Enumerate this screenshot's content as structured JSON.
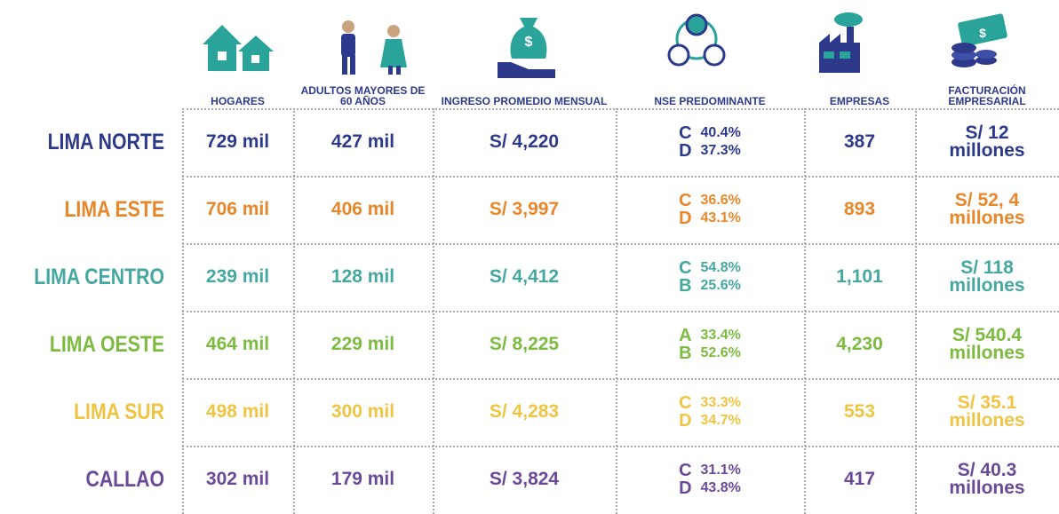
{
  "header": {
    "columns": [
      "HOGARES",
      "ADULTOS MAYORES DE 60 AÑOS",
      "INGRESO PROMEDIO MENSUAL",
      "NSE PREDOMINANTE",
      "EMPRESAS",
      "FACTURACIÓN EMPRESARIAL"
    ]
  },
  "table": {
    "rows": [
      {
        "region": "LIMA NORTE",
        "color": "#2d3a8c",
        "hogares": "729 mil",
        "adultos": "427 mil",
        "ingreso": "S/ 4,220",
        "nse": [
          [
            "C",
            "40.4%"
          ],
          [
            "D",
            "37.3%"
          ]
        ],
        "empresas": "387",
        "facturacion": [
          "S/ 12",
          "millones"
        ]
      },
      {
        "region": "LIMA ESTE",
        "color": "#e8862a",
        "hogares": "706 mil",
        "adultos": "406 mil",
        "ingreso": "S/ 3,997",
        "nse": [
          [
            "C",
            "36.6%"
          ],
          [
            "D",
            "43.1%"
          ]
        ],
        "empresas": "893",
        "facturacion": [
          "S/ 52, 4",
          "millones"
        ]
      },
      {
        "region": "LIMA CENTRO",
        "color": "#45a8a0",
        "hogares": "239 mil",
        "adultos": "128 mil",
        "ingreso": "S/ 4,412",
        "nse": [
          [
            "C",
            "54.8%"
          ],
          [
            "B",
            "25.6%"
          ]
        ],
        "empresas": "1,101",
        "facturacion": [
          "S/ 118",
          "millones"
        ]
      },
      {
        "region": "LIMA OESTE",
        "color": "#7cbb40",
        "hogares": "464 mil",
        "adultos": "229 mil",
        "ingreso": "S/ 8,225",
        "nse": [
          [
            "A",
            "33.4%"
          ],
          [
            "B",
            "52.6%"
          ]
        ],
        "empresas": "4,230",
        "facturacion": [
          "S/ 540.4",
          "millones"
        ]
      },
      {
        "region": "LIMA SUR",
        "color": "#efc443",
        "hogares": "498 mil",
        "adultos": "300 mil",
        "ingreso": "S/ 4,283",
        "nse": [
          [
            "C",
            "33.3%"
          ],
          [
            "D",
            "34.7%"
          ]
        ],
        "empresas": "553",
        "facturacion": [
          "S/ 35.1",
          "millones"
        ]
      },
      {
        "region": "CALLAO",
        "color": "#6a4a98",
        "hogares": "302 mil",
        "adultos": "179 mil",
        "ingreso": "S/ 3,824",
        "nse": [
          [
            "C",
            "31.1%"
          ],
          [
            "D",
            "43.8%"
          ]
        ],
        "empresas": "417",
        "facturacion": [
          "S/ 40.3",
          "millones"
        ]
      }
    ]
  }
}
